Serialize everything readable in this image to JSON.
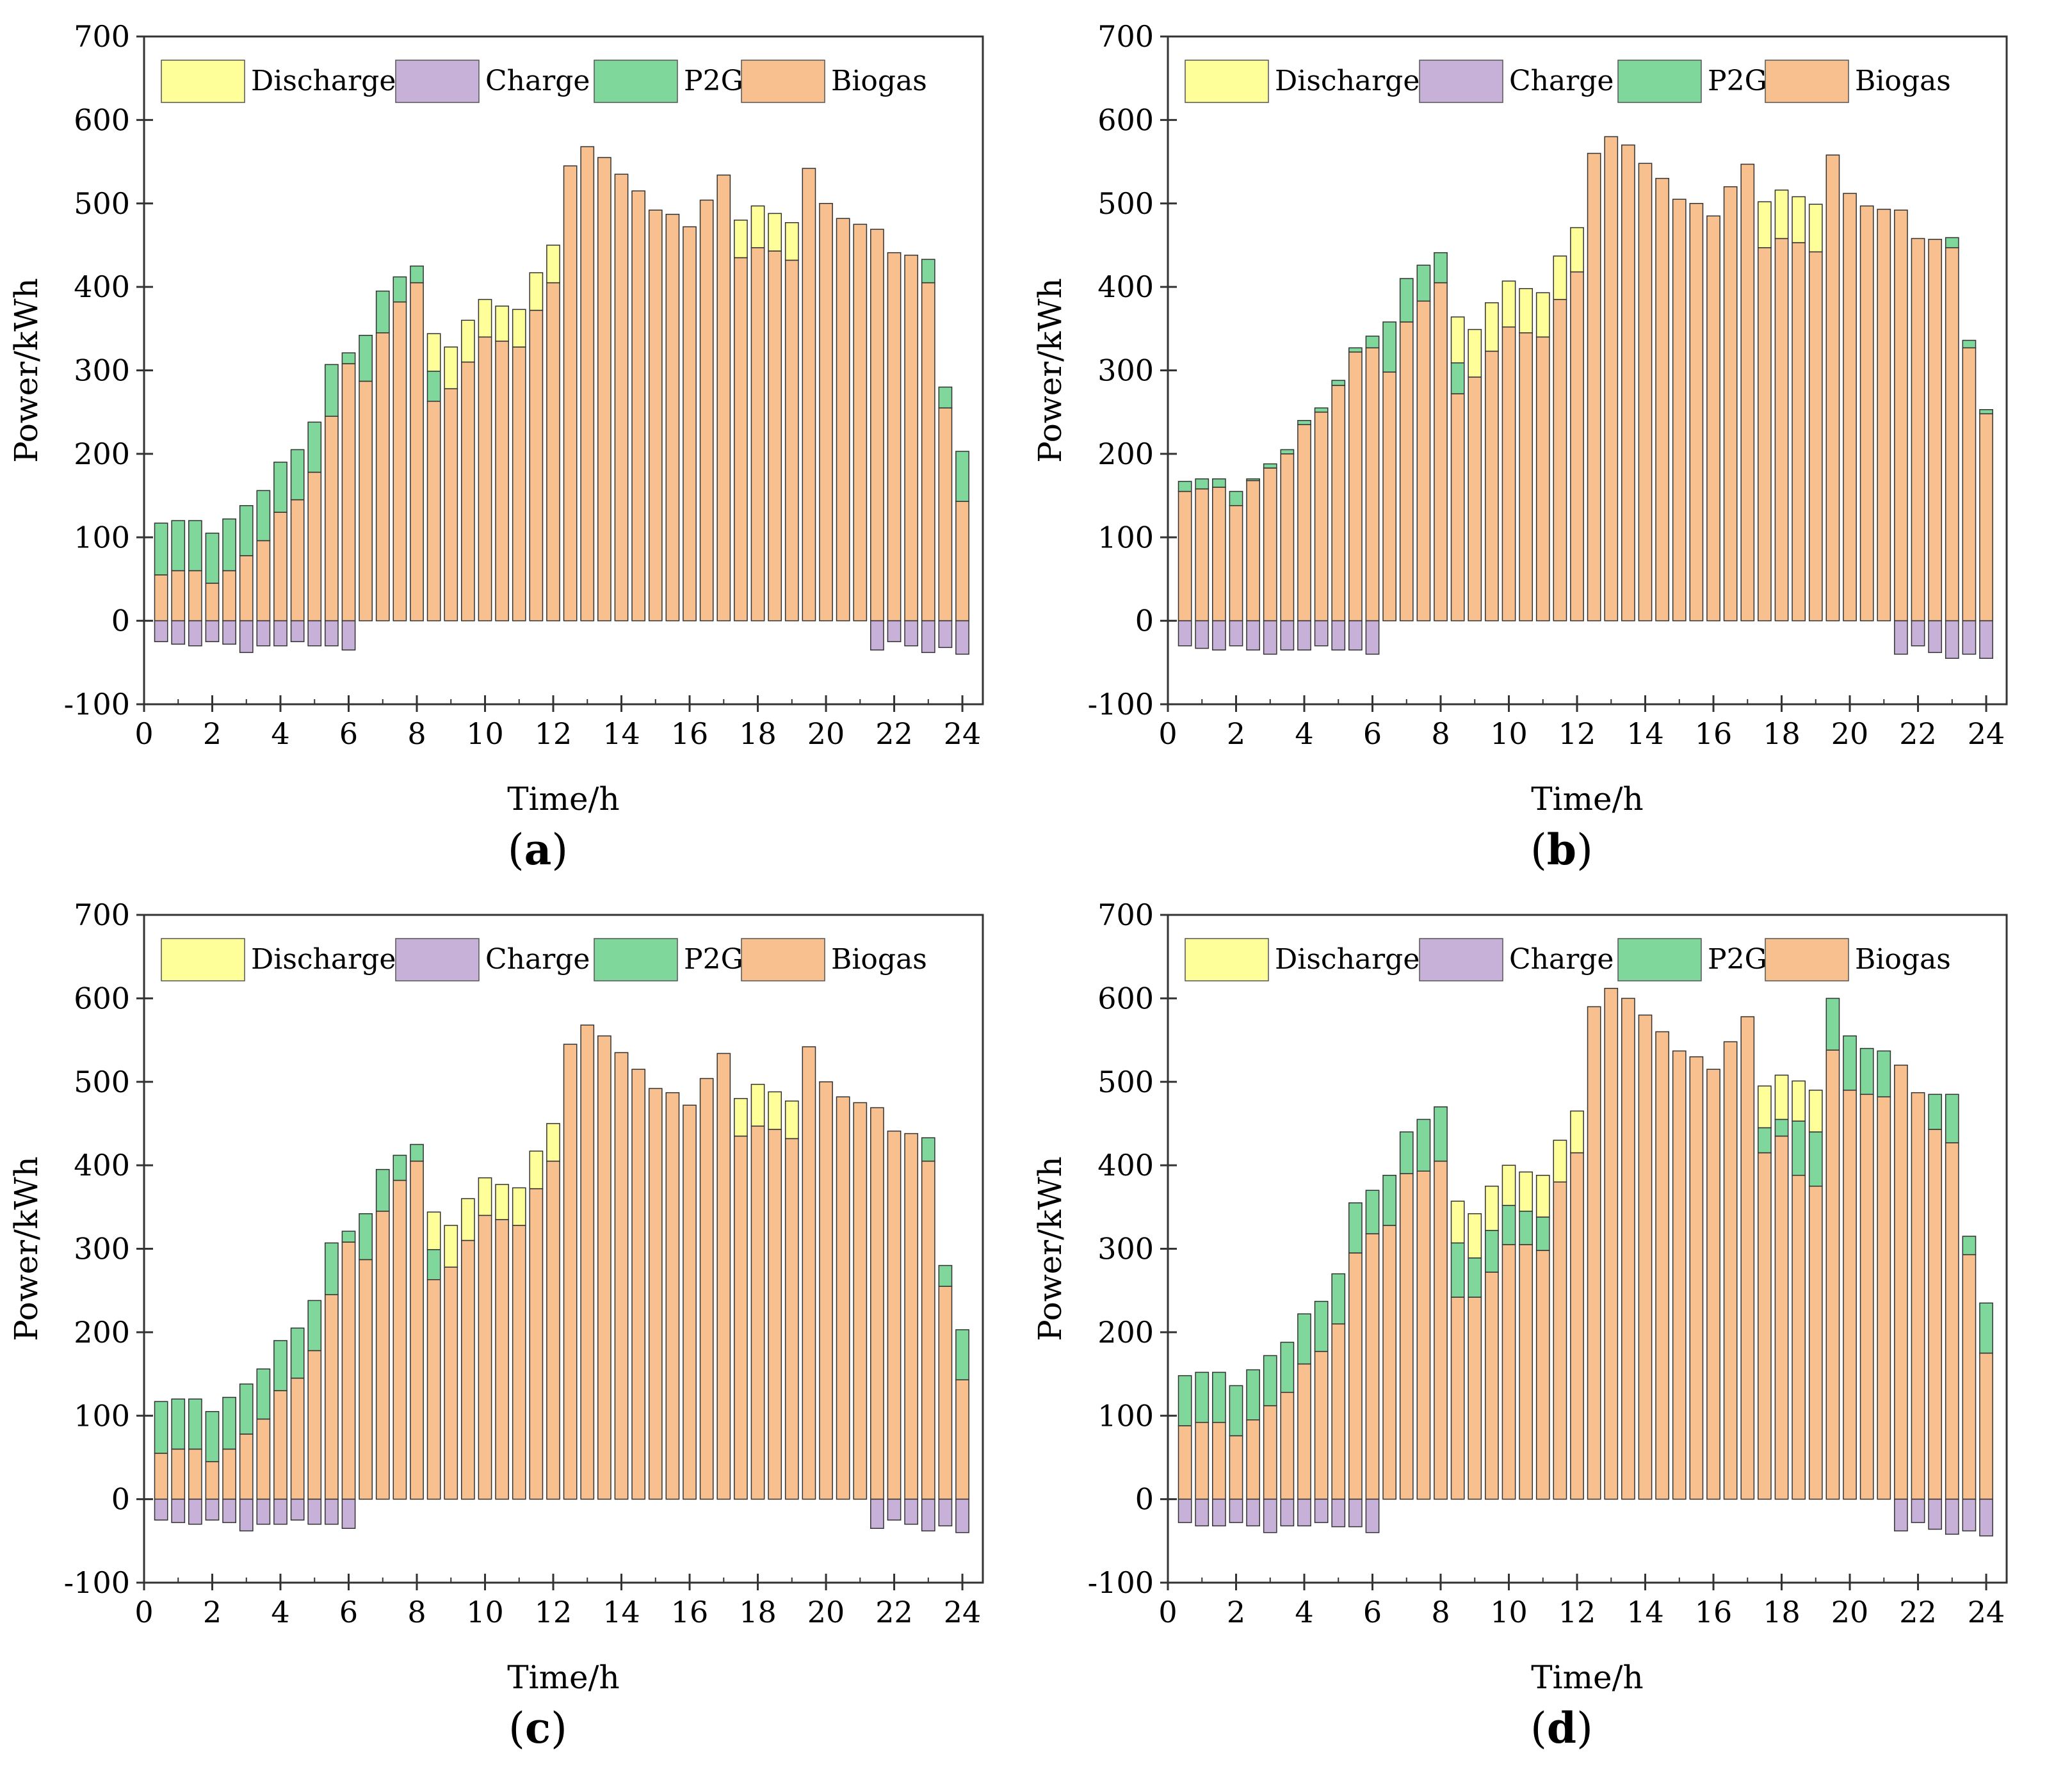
{
  "figure": {
    "colors": {
      "Discharge": "#ffff99",
      "Charge": "#c8b1d9",
      "P2G": "#7fd79b",
      "Biogas": "#f9c08f",
      "outline": "#333333"
    },
    "legend": [
      "Discharge",
      "Charge",
      "P2G",
      "Biogas"
    ],
    "xlabel": "Time/h",
    "ylabel": "Power/kWh"
  },
  "chart_data": [
    {
      "type": "bar",
      "panel": "a",
      "caption_open": "(",
      "caption_letter": "a",
      "caption_close": ")",
      "xlabel": "Time/h",
      "ylabel": "Power/kWh",
      "xlim": [
        0,
        24.6
      ],
      "ylim": [
        -100,
        700
      ],
      "xticks": [
        0,
        2,
        4,
        6,
        8,
        10,
        12,
        14,
        16,
        18,
        20,
        22,
        24
      ],
      "yticks": [
        -100,
        0,
        100,
        200,
        300,
        400,
        500,
        600,
        700
      ],
      "x": [
        0.5,
        1.0,
        1.5,
        2.0,
        2.5,
        3.0,
        3.5,
        4.0,
        4.5,
        5.0,
        5.5,
        6.0,
        6.5,
        7.0,
        7.5,
        8.0,
        8.5,
        9.0,
        9.5,
        10.0,
        10.5,
        11.0,
        11.5,
        12.0,
        12.5,
        13.0,
        13.5,
        14.0,
        14.5,
        15.0,
        15.5,
        16.0,
        16.5,
        17.0,
        17.5,
        18.0,
        18.5,
        19.0,
        19.5,
        20.0,
        20.5,
        21.0,
        21.5,
        22.0,
        22.5,
        23.0,
        23.5,
        24.0
      ],
      "series": [
        {
          "name": "Biogas",
          "values": [
            55,
            60,
            60,
            45,
            60,
            78,
            96,
            130,
            145,
            178,
            245,
            308,
            287,
            345,
            382,
            405,
            263,
            278,
            310,
            340,
            335,
            328,
            372,
            405,
            545,
            568,
            555,
            535,
            515,
            492,
            487,
            472,
            504,
            534,
            435,
            447,
            443,
            432,
            542,
            500,
            482,
            475,
            469,
            441,
            438,
            405,
            255,
            143
          ]
        },
        {
          "name": "P2G",
          "values": [
            62,
            60,
            60,
            60,
            62,
            60,
            60,
            60,
            60,
            60,
            62,
            13,
            55,
            50,
            30,
            20,
            36,
            0,
            0,
            0,
            0,
            0,
            0,
            0,
            0,
            0,
            0,
            0,
            0,
            0,
            0,
            0,
            0,
            0,
            0,
            0,
            0,
            0,
            0,
            0,
            0,
            0,
            0,
            0,
            0,
            28,
            25,
            60
          ]
        },
        {
          "name": "Discharge",
          "values": [
            0,
            0,
            0,
            0,
            0,
            0,
            0,
            0,
            0,
            0,
            0,
            0,
            0,
            0,
            0,
            0,
            45,
            50,
            50,
            45,
            42,
            45,
            45,
            45,
            0,
            0,
            0,
            0,
            0,
            0,
            0,
            0,
            0,
            0,
            45,
            50,
            45,
            45,
            0,
            0,
            0,
            0,
            0,
            0,
            0,
            0,
            0,
            0
          ]
        },
        {
          "name": "Charge",
          "values": [
            -25,
            -28,
            -30,
            -25,
            -28,
            -38,
            -30,
            -30,
            -25,
            -30,
            -30,
            -35,
            0,
            0,
            0,
            0,
            0,
            0,
            0,
            0,
            0,
            0,
            0,
            0,
            0,
            0,
            0,
            0,
            0,
            0,
            0,
            0,
            0,
            0,
            0,
            0,
            0,
            0,
            0,
            0,
            0,
            0,
            -35,
            -25,
            -30,
            -38,
            -32,
            -40
          ]
        }
      ]
    },
    {
      "type": "bar",
      "panel": "b",
      "caption_open": "(",
      "caption_letter": "b",
      "caption_close": ")",
      "xlabel": "Time/h",
      "ylabel": "Power/kWh",
      "xlim": [
        0,
        24.6
      ],
      "ylim": [
        -100,
        700
      ],
      "xticks": [
        0,
        2,
        4,
        6,
        8,
        10,
        12,
        14,
        16,
        18,
        20,
        22,
        24
      ],
      "yticks": [
        -100,
        0,
        100,
        200,
        300,
        400,
        500,
        600,
        700
      ],
      "x": [
        0.5,
        1.0,
        1.5,
        2.0,
        2.5,
        3.0,
        3.5,
        4.0,
        4.5,
        5.0,
        5.5,
        6.0,
        6.5,
        7.0,
        7.5,
        8.0,
        8.5,
        9.0,
        9.5,
        10.0,
        10.5,
        11.0,
        11.5,
        12.0,
        12.5,
        13.0,
        13.5,
        14.0,
        14.5,
        15.0,
        15.5,
        16.0,
        16.5,
        17.0,
        17.5,
        18.0,
        18.5,
        19.0,
        19.5,
        20.0,
        20.5,
        21.0,
        21.5,
        22.0,
        22.5,
        23.0,
        23.5,
        24.0
      ],
      "series": [
        {
          "name": "Biogas",
          "values": [
            155,
            158,
            160,
            138,
            168,
            183,
            200,
            235,
            250,
            282,
            322,
            327,
            298,
            358,
            383,
            405,
            272,
            292,
            323,
            352,
            345,
            340,
            385,
            418,
            560,
            580,
            570,
            548,
            530,
            505,
            500,
            485,
            520,
            547,
            447,
            458,
            453,
            442,
            558,
            512,
            497,
            493,
            492,
            458,
            457,
            447,
            327,
            248
          ]
        },
        {
          "name": "P2G",
          "values": [
            12,
            12,
            10,
            17,
            2,
            5,
            5,
            5,
            5,
            6,
            5,
            14,
            60,
            52,
            43,
            36,
            37,
            0,
            0,
            0,
            0,
            0,
            0,
            0,
            0,
            0,
            0,
            0,
            0,
            0,
            0,
            0,
            0,
            0,
            0,
            0,
            0,
            0,
            0,
            0,
            0,
            0,
            0,
            0,
            0,
            12,
            9,
            5
          ]
        },
        {
          "name": "Discharge",
          "values": [
            0,
            0,
            0,
            0,
            0,
            0,
            0,
            0,
            0,
            0,
            0,
            0,
            0,
            0,
            0,
            0,
            55,
            57,
            58,
            55,
            53,
            53,
            52,
            53,
            0,
            0,
            0,
            0,
            0,
            0,
            0,
            0,
            0,
            0,
            55,
            58,
            55,
            57,
            0,
            0,
            0,
            0,
            0,
            0,
            0,
            0,
            0,
            0
          ]
        },
        {
          "name": "Charge",
          "values": [
            -30,
            -33,
            -35,
            -30,
            -35,
            -40,
            -35,
            -35,
            -30,
            -35,
            -35,
            -40,
            0,
            0,
            0,
            0,
            0,
            0,
            0,
            0,
            0,
            0,
            0,
            0,
            0,
            0,
            0,
            0,
            0,
            0,
            0,
            0,
            0,
            0,
            0,
            0,
            0,
            0,
            0,
            0,
            0,
            0,
            -40,
            -30,
            -38,
            -45,
            -40,
            -45
          ]
        }
      ]
    },
    {
      "type": "bar",
      "panel": "c",
      "caption_open": "(",
      "caption_letter": "c",
      "caption_close": ")",
      "xlabel": "Time/h",
      "ylabel": "Power/kWh",
      "xlim": [
        0,
        24.6
      ],
      "ylim": [
        -100,
        700
      ],
      "xticks": [
        0,
        2,
        4,
        6,
        8,
        10,
        12,
        14,
        16,
        18,
        20,
        22,
        24
      ],
      "yticks": [
        -100,
        0,
        100,
        200,
        300,
        400,
        500,
        600,
        700
      ],
      "x": [
        0.5,
        1.0,
        1.5,
        2.0,
        2.5,
        3.0,
        3.5,
        4.0,
        4.5,
        5.0,
        5.5,
        6.0,
        6.5,
        7.0,
        7.5,
        8.0,
        8.5,
        9.0,
        9.5,
        10.0,
        10.5,
        11.0,
        11.5,
        12.0,
        12.5,
        13.0,
        13.5,
        14.0,
        14.5,
        15.0,
        15.5,
        16.0,
        16.5,
        17.0,
        17.5,
        18.0,
        18.5,
        19.0,
        19.5,
        20.0,
        20.5,
        21.0,
        21.5,
        22.0,
        22.5,
        23.0,
        23.5,
        24.0
      ],
      "series": [
        {
          "name": "Biogas",
          "values": [
            55,
            60,
            60,
            45,
            60,
            78,
            96,
            130,
            145,
            178,
            245,
            308,
            287,
            345,
            382,
            405,
            263,
            278,
            310,
            340,
            335,
            328,
            372,
            405,
            545,
            568,
            555,
            535,
            515,
            492,
            487,
            472,
            504,
            534,
            435,
            447,
            443,
            432,
            542,
            500,
            482,
            475,
            469,
            441,
            438,
            405,
            255,
            143
          ]
        },
        {
          "name": "P2G",
          "values": [
            62,
            60,
            60,
            60,
            62,
            60,
            60,
            60,
            60,
            60,
            62,
            13,
            55,
            50,
            30,
            20,
            36,
            0,
            0,
            0,
            0,
            0,
            0,
            0,
            0,
            0,
            0,
            0,
            0,
            0,
            0,
            0,
            0,
            0,
            0,
            0,
            0,
            0,
            0,
            0,
            0,
            0,
            0,
            0,
            0,
            28,
            25,
            60
          ]
        },
        {
          "name": "Discharge",
          "values": [
            0,
            0,
            0,
            0,
            0,
            0,
            0,
            0,
            0,
            0,
            0,
            0,
            0,
            0,
            0,
            0,
            45,
            50,
            50,
            45,
            42,
            45,
            45,
            45,
            0,
            0,
            0,
            0,
            0,
            0,
            0,
            0,
            0,
            0,
            45,
            50,
            45,
            45,
            0,
            0,
            0,
            0,
            0,
            0,
            0,
            0,
            0,
            0
          ]
        },
        {
          "name": "Charge",
          "values": [
            -25,
            -28,
            -30,
            -25,
            -28,
            -38,
            -30,
            -30,
            -25,
            -30,
            -30,
            -35,
            0,
            0,
            0,
            0,
            0,
            0,
            0,
            0,
            0,
            0,
            0,
            0,
            0,
            0,
            0,
            0,
            0,
            0,
            0,
            0,
            0,
            0,
            0,
            0,
            0,
            0,
            0,
            0,
            0,
            0,
            -35,
            -25,
            -30,
            -38,
            -32,
            -40
          ]
        }
      ]
    },
    {
      "type": "bar",
      "panel": "d",
      "caption_open": "(",
      "caption_letter": "d",
      "caption_close": ")",
      "xlabel": "Time/h",
      "ylabel": "Power/kWh",
      "xlim": [
        0,
        24.6
      ],
      "ylim": [
        -100,
        700
      ],
      "xticks": [
        0,
        2,
        4,
        6,
        8,
        10,
        12,
        14,
        16,
        18,
        20,
        22,
        24
      ],
      "yticks": [
        -100,
        0,
        100,
        200,
        300,
        400,
        500,
        600,
        700
      ],
      "x": [
        0.5,
        1.0,
        1.5,
        2.0,
        2.5,
        3.0,
        3.5,
        4.0,
        4.5,
        5.0,
        5.5,
        6.0,
        6.5,
        7.0,
        7.5,
        8.0,
        8.5,
        9.0,
        9.5,
        10.0,
        10.5,
        11.0,
        11.5,
        12.0,
        12.5,
        13.0,
        13.5,
        14.0,
        14.5,
        15.0,
        15.5,
        16.0,
        16.5,
        17.0,
        17.5,
        18.0,
        18.5,
        19.0,
        19.5,
        20.0,
        20.5,
        21.0,
        21.5,
        22.0,
        22.5,
        23.0,
        23.5,
        24.0
      ],
      "series": [
        {
          "name": "Biogas",
          "values": [
            88,
            92,
            92,
            76,
            95,
            112,
            128,
            162,
            177,
            210,
            295,
            318,
            328,
            390,
            393,
            405,
            242,
            242,
            272,
            305,
            305,
            298,
            380,
            415,
            590,
            612,
            600,
            580,
            560,
            537,
            530,
            515,
            548,
            578,
            415,
            435,
            388,
            375,
            538,
            490,
            485,
            482,
            520,
            487,
            443,
            427,
            293,
            175
          ]
        },
        {
          "name": "P2G",
          "values": [
            60,
            60,
            60,
            60,
            60,
            60,
            60,
            60,
            60,
            60,
            60,
            52,
            60,
            50,
            62,
            65,
            65,
            47,
            50,
            47,
            40,
            40,
            0,
            0,
            0,
            0,
            0,
            0,
            0,
            0,
            0,
            0,
            0,
            0,
            30,
            20,
            65,
            65,
            62,
            65,
            55,
            55,
            0,
            0,
            42,
            58,
            22,
            60
          ]
        },
        {
          "name": "Discharge",
          "values": [
            0,
            0,
            0,
            0,
            0,
            0,
            0,
            0,
            0,
            0,
            0,
            0,
            0,
            0,
            0,
            0,
            50,
            53,
            53,
            48,
            47,
            50,
            50,
            50,
            0,
            0,
            0,
            0,
            0,
            0,
            0,
            0,
            0,
            0,
            50,
            53,
            48,
            50,
            0,
            0,
            0,
            0,
            0,
            0,
            0,
            0,
            0,
            0
          ]
        },
        {
          "name": "Charge",
          "values": [
            -28,
            -32,
            -32,
            -28,
            -32,
            -40,
            -32,
            -32,
            -28,
            -33,
            -33,
            -40,
            0,
            0,
            0,
            0,
            0,
            0,
            0,
            0,
            0,
            0,
            0,
            0,
            0,
            0,
            0,
            0,
            0,
            0,
            0,
            0,
            0,
            0,
            0,
            0,
            0,
            0,
            0,
            0,
            0,
            0,
            -38,
            -28,
            -36,
            -42,
            -38,
            -44
          ]
        }
      ]
    }
  ]
}
